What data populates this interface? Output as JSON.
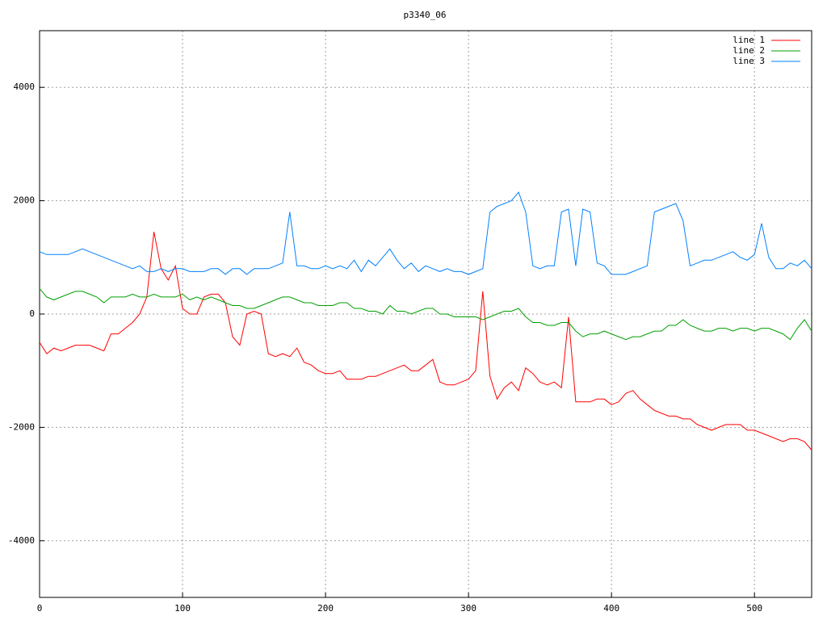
{
  "chart_data": {
    "type": "line",
    "title": "p3340_06",
    "x": [
      0,
      5,
      10,
      15,
      20,
      25,
      30,
      35,
      40,
      45,
      50,
      55,
      60,
      65,
      70,
      75,
      80,
      85,
      90,
      95,
      100,
      105,
      110,
      115,
      120,
      125,
      130,
      135,
      140,
      145,
      150,
      155,
      160,
      165,
      170,
      175,
      180,
      185,
      190,
      195,
      200,
      205,
      210,
      215,
      220,
      225,
      230,
      235,
      240,
      245,
      250,
      255,
      260,
      265,
      270,
      275,
      280,
      285,
      290,
      295,
      300,
      305,
      310,
      315,
      320,
      325,
      330,
      335,
      340,
      345,
      350,
      355,
      360,
      365,
      370,
      375,
      380,
      385,
      390,
      395,
      400,
      405,
      410,
      415,
      420,
      425,
      430,
      435,
      440,
      445,
      450,
      455,
      460,
      465,
      470,
      475,
      480,
      485,
      490,
      495,
      500,
      505,
      510,
      515,
      520,
      525,
      530,
      535,
      540
    ],
    "series": [
      {
        "name": "line 1",
        "color": "#ff0000",
        "values": [
          -500,
          -700,
          -600,
          -650,
          -600,
          -550,
          -550,
          -550,
          -600,
          -650,
          -350,
          -350,
          -250,
          -150,
          0,
          300,
          1450,
          800,
          600,
          850,
          100,
          0,
          0,
          300,
          350,
          350,
          200,
          -400,
          -550,
          0,
          50,
          0,
          -700,
          -750,
          -700,
          -750,
          -600,
          -850,
          -900,
          -1000,
          -1050,
          -1050,
          -1000,
          -1150,
          -1150,
          -1150,
          -1100,
          -1100,
          -1050,
          -1000,
          -950,
          -900,
          -1000,
          -1000,
          -900,
          -800,
          -1200,
          -1250,
          -1250,
          -1200,
          -1150,
          -1000,
          400,
          -1100,
          -1500,
          -1300,
          -1200,
          -1350,
          -950,
          -1050,
          -1200,
          -1250,
          -1200,
          -1300,
          -50,
          -1550,
          -1550,
          -1550,
          -1500,
          -1500,
          -1600,
          -1550,
          -1400,
          -1350,
          -1500,
          -1600,
          -1700,
          -1750,
          -1800,
          -1800,
          -1850,
          -1850,
          -1950,
          -2000,
          -2050,
          -2000,
          -1950,
          -1950,
          -1950,
          -2050,
          -2050,
          -2100,
          -2150,
          -2200,
          -2250,
          -2200,
          -2200,
          -2250,
          -2400
        ]
      },
      {
        "name": "line 2",
        "color": "#00a000",
        "values": [
          450,
          300,
          250,
          300,
          350,
          400,
          400,
          350,
          300,
          200,
          300,
          300,
          300,
          350,
          300,
          300,
          350,
          300,
          300,
          300,
          350,
          250,
          300,
          250,
          300,
          250,
          200,
          150,
          150,
          100,
          100,
          150,
          200,
          250,
          300,
          300,
          250,
          200,
          200,
          150,
          150,
          150,
          200,
          200,
          100,
          100,
          50,
          50,
          0,
          150,
          50,
          50,
          0,
          50,
          100,
          100,
          0,
          0,
          -50,
          -50,
          -50,
          -50,
          -100,
          -50,
          0,
          50,
          50,
          100,
          -50,
          -150,
          -150,
          -200,
          -200,
          -150,
          -150,
          -300,
          -400,
          -350,
          -350,
          -300,
          -350,
          -400,
          -450,
          -400,
          -400,
          -350,
          -300,
          -300,
          -200,
          -200,
          -100,
          -200,
          -250,
          -300,
          -300,
          -250,
          -250,
          -300,
          -250,
          -250,
          -300,
          -250,
          -250,
          -300,
          -350,
          -450,
          -250,
          -100,
          -300
        ]
      },
      {
        "name": "line 3",
        "color": "#0080ff",
        "values": [
          1100,
          1050,
          1050,
          1050,
          1050,
          1100,
          1150,
          1100,
          1050,
          1000,
          950,
          900,
          850,
          800,
          850,
          750,
          750,
          800,
          750,
          800,
          800,
          750,
          750,
          750,
          800,
          800,
          700,
          800,
          800,
          700,
          800,
          800,
          800,
          850,
          900,
          1800,
          850,
          850,
          800,
          800,
          850,
          800,
          850,
          800,
          950,
          750,
          950,
          850,
          1000,
          1150,
          950,
          800,
          900,
          750,
          850,
          800,
          750,
          800,
          750,
          750,
          700,
          750,
          800,
          1800,
          1900,
          1950,
          2000,
          2150,
          1800,
          850,
          800,
          850,
          850,
          1800,
          1850,
          850,
          1850,
          1800,
          900,
          850,
          700,
          700,
          700,
          750,
          800,
          850,
          1800,
          1850,
          1900,
          1950,
          1650,
          850,
          900,
          950,
          950,
          1000,
          1050,
          1100,
          1000,
          950,
          1050,
          1600,
          1000,
          800,
          800,
          900,
          850,
          950,
          800
        ]
      }
    ],
    "xlim": [
      0,
      540
    ],
    "xticks": [
      0,
      100,
      200,
      300,
      400,
      500
    ],
    "ylim": [
      -5000,
      5000
    ],
    "yticks": [
      -4000,
      -2000,
      0,
      2000,
      4000
    ],
    "grid": true,
    "legend": "top-right"
  }
}
